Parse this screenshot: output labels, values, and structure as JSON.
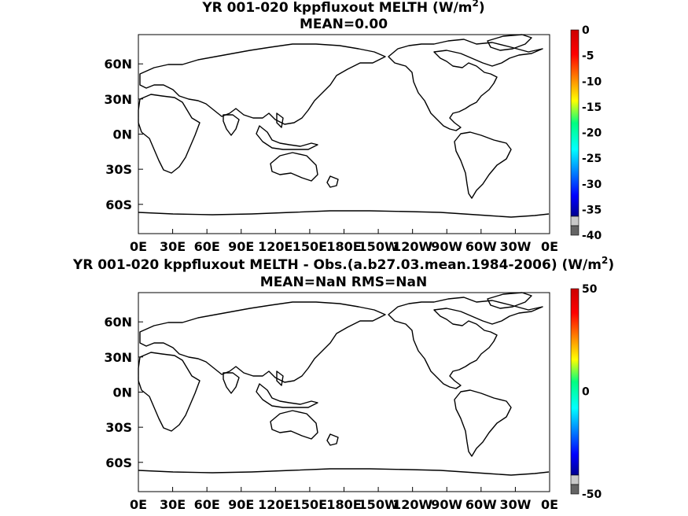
{
  "chart_data": [
    {
      "type": "heatmap",
      "title_line1": "YR 001-020 kppfluxout  MELTH (W/m",
      "title_sup": "2",
      "title_close": ")",
      "subtitle": "MEAN=0.00",
      "x_ticks": [
        "0E",
        "30E",
        "60E",
        "90E",
        "120E",
        "150E",
        "180E",
        "150W",
        "120W",
        "90W",
        "60W",
        "30W",
        "0E"
      ],
      "y_ticks": [
        "60N",
        "30N",
        "0N",
        "30S",
        "60S"
      ],
      "y_tick_values": [
        60,
        30,
        0,
        -30,
        -60
      ],
      "xlim": [
        0,
        360
      ],
      "ylim": [
        -85,
        85
      ],
      "colorbar": {
        "range": [
          -40,
          0
        ],
        "ticks": [
          "0",
          "-5",
          "-10",
          "-15",
          "-20",
          "-25",
          "-30",
          "-35",
          "-40"
        ],
        "tick_values": [
          0,
          -5,
          -10,
          -15,
          -20,
          -25,
          -30,
          -35,
          -40
        ],
        "extension_colors": [
          "#c8c8c8",
          "#646464"
        ]
      },
      "field_value": 0
    },
    {
      "type": "heatmap",
      "title_line1": "YR 001-020 kppfluxout MELTH - Obs.(a.b27.03.mean.1984-2006) (W/m",
      "title_sup": "2",
      "title_close": ")",
      "subtitle": "MEAN=NaN RMS=NaN",
      "x_ticks": [
        "0E",
        "30E",
        "60E",
        "90E",
        "120E",
        "150E",
        "180E",
        "150W",
        "120W",
        "90W",
        "60W",
        "30W",
        "0E"
      ],
      "y_ticks": [
        "60N",
        "30N",
        "0N",
        "30S",
        "60S"
      ],
      "y_tick_values": [
        60,
        30,
        0,
        -30,
        -60
      ],
      "xlim": [
        0,
        360
      ],
      "ylim": [
        -85,
        85
      ],
      "colorbar": {
        "range": [
          -50,
          50
        ],
        "ticks": [
          "50",
          "0",
          "-50"
        ],
        "tick_values": [
          50,
          0,
          -50
        ],
        "extension_colors": [
          "#c8c8c8",
          "#646464"
        ]
      },
      "field_value": null
    }
  ]
}
